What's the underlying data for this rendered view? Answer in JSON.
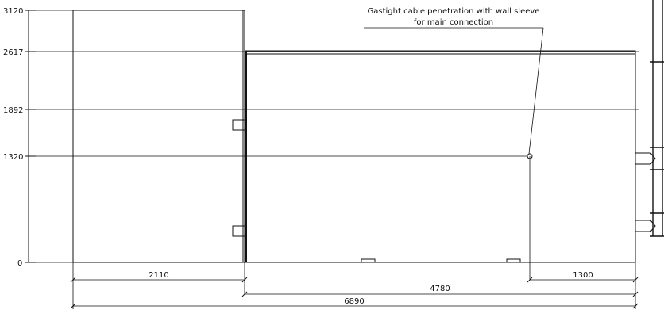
{
  "elevation_levels": {
    "top": "3120",
    "roof": "2617",
    "upper": "1892",
    "connection": "1320",
    "base": "0"
  },
  "dimensions": {
    "left_section": "2110",
    "main_section": "4780",
    "overall": "6890",
    "connection_offset": "1300"
  },
  "annotation": {
    "line1": "Gastight cable penetration with wall sleeve",
    "line2": "for main connection"
  },
  "colors": {
    "stroke": "#111111",
    "background": "#ffffff"
  }
}
